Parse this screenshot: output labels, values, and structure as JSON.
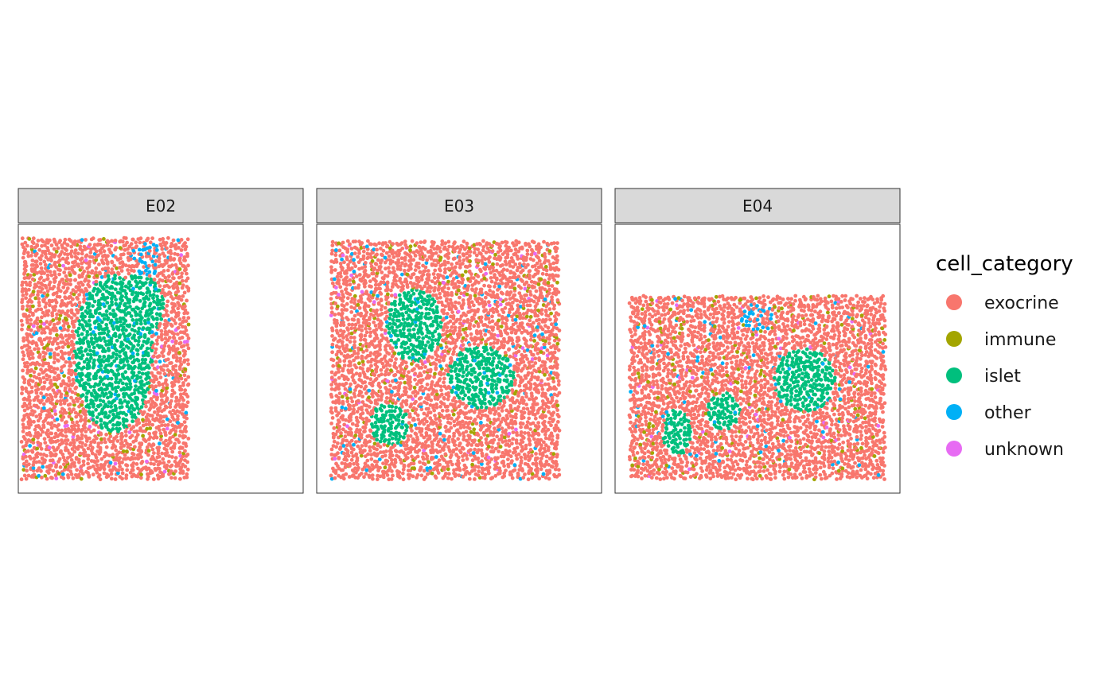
{
  "chart_data": {
    "type": "scatter",
    "facets": [
      "E02",
      "E03",
      "E04"
    ],
    "legend": {
      "title": "cell_category",
      "position": "right",
      "entries": [
        {
          "label": "exocrine",
          "color": "#F8766D"
        },
        {
          "label": "immune",
          "color": "#A3A500"
        },
        {
          "label": "islet",
          "color": "#00BF7D"
        },
        {
          "label": "other",
          "color": "#00B0F6"
        },
        {
          "label": "unknown",
          "color": "#E76BF3"
        }
      ]
    },
    "axes": {
      "x_visible": false,
      "y_visible": false,
      "grid": false
    },
    "panels": [
      {
        "facet": "E02",
        "tissue": {
          "xlim": [
            0,
            0.6
          ],
          "ylim": [
            0.04,
            0.96
          ]
        },
        "islets": [
          {
            "cx": 0.33,
            "cy": 0.52,
            "rx": 0.14,
            "ry": 0.3
          },
          {
            "cx": 0.42,
            "cy": 0.7,
            "rx": 0.09,
            "ry": 0.12
          }
        ],
        "other_clusters": [
          {
            "cx": 0.45,
            "cy": 0.88,
            "rx": 0.06,
            "ry": 0.07
          }
        ]
      },
      {
        "facet": "E03",
        "tissue": {
          "xlim": [
            0.04,
            0.86
          ],
          "ylim": [
            0.04,
            0.95
          ]
        },
        "islets": [
          {
            "cx": 0.34,
            "cy": 0.63,
            "rx": 0.1,
            "ry": 0.14
          },
          {
            "cx": 0.58,
            "cy": 0.43,
            "rx": 0.12,
            "ry": 0.12
          },
          {
            "cx": 0.25,
            "cy": 0.25,
            "rx": 0.07,
            "ry": 0.08
          }
        ],
        "other_clusters": []
      },
      {
        "facet": "E04",
        "tissue": {
          "xlim": [
            0.04,
            0.96
          ],
          "ylim": [
            0.04,
            0.74
          ]
        },
        "islets": [
          {
            "cx": 0.67,
            "cy": 0.42,
            "rx": 0.11,
            "ry": 0.12
          },
          {
            "cx": 0.38,
            "cy": 0.3,
            "rx": 0.06,
            "ry": 0.07
          },
          {
            "cx": 0.21,
            "cy": 0.22,
            "rx": 0.05,
            "ry": 0.09
          }
        ],
        "other_clusters": [
          {
            "cx": 0.5,
            "cy": 0.66,
            "rx": 0.06,
            "ry": 0.05
          }
        ]
      }
    ]
  }
}
